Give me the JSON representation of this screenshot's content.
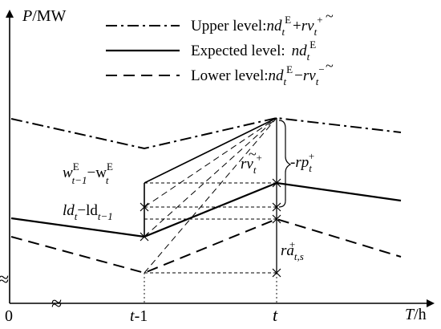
{
  "axes": {
    "y_label_var": "P",
    "y_label_unit": "/MW",
    "x_label_var": "T",
    "x_label_unit": "/h",
    "origin": "0",
    "tick_t_minus_1_var": "t",
    "tick_t_minus_1_suffix": "-1",
    "tick_t": "t",
    "break_symbol": "≈"
  },
  "legend": {
    "upper": {
      "text": "Upper level:",
      "sup_E": "E",
      "sup_plus": "+"
    },
    "expected": {
      "text": "Expected level:",
      "sup_E": "E"
    },
    "lower": {
      "text": "Lower level:",
      "sup_E": "E",
      "sup_minus": "−"
    }
  },
  "symbols": {
    "nd": "nd",
    "sub_t": "t",
    "plus": "+",
    "minus": "−",
    "r": "r",
    "v": "v",
    "tilde": "~"
  },
  "annotations": {
    "w_prefix": "w",
    "w_sup": "E",
    "w_sub": "t−1",
    "w_minus": "−w",
    "ld1": "ld",
    "ld_sub": "t",
    "ld_minus": "−ld",
    "ld_sub2": "t−1",
    "rv_sup": "+",
    "rp": "rp",
    "rp_sub": "t",
    "rp_sup": "+",
    "dash": "-",
    "ra": "ra",
    "ra_sub": "t,s",
    "ra_sup": "+"
  },
  "styles": {
    "line_color": "#000000"
  }
}
